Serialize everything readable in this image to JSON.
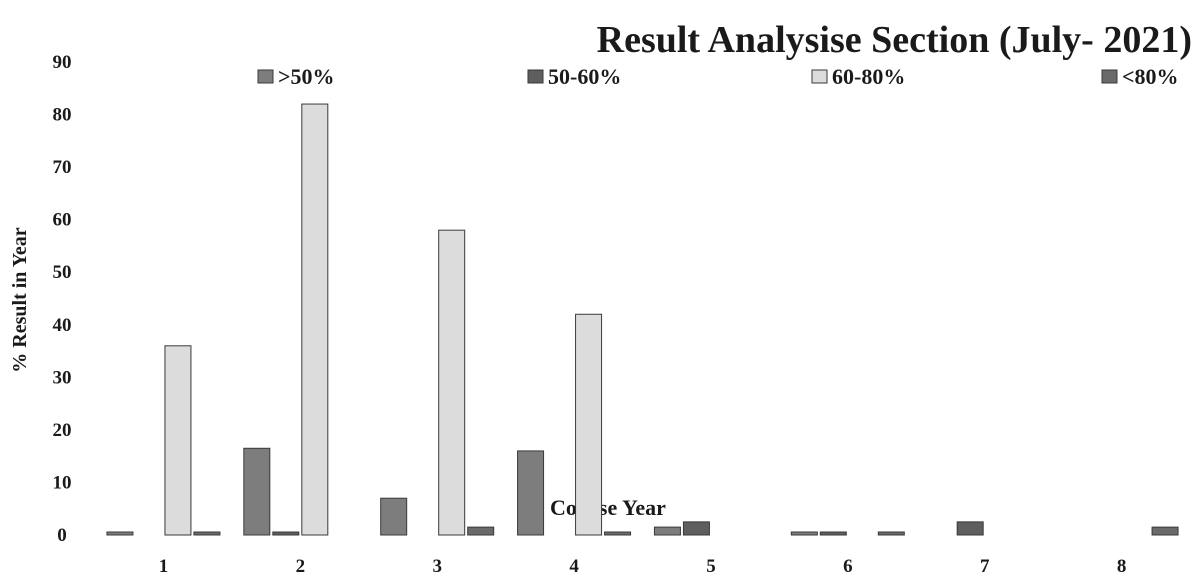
{
  "chart_data": {
    "type": "bar",
    "title": "Result Analysise Section (July- 2021)",
    "xlabel": "Course Year",
    "ylabel": "% Result in Year",
    "ylim": [
      0,
      90
    ],
    "yticks": [
      "0",
      "10",
      "20",
      "30",
      "40",
      "50",
      "60",
      "70",
      "80",
      "90"
    ],
    "categories": [
      "1",
      "2",
      "3",
      "4",
      "5",
      "6",
      "7",
      "8"
    ],
    "series": [
      {
        "name": ">50%",
        "color": "#7d7d7d",
        "values": [
          0.5,
          16.5,
          7,
          16,
          1.5,
          0.5,
          0,
          0
        ]
      },
      {
        "name": "50-60%",
        "color": "#5e5e5e",
        "values": [
          0,
          0.5,
          0,
          0,
          2.5,
          0.5,
          2.5,
          0
        ]
      },
      {
        "name": "60-80%",
        "color": "#dcdcdc",
        "values": [
          36,
          82,
          58,
          42,
          0,
          0,
          0,
          0
        ]
      },
      {
        "name": "<80%",
        "color": "#6a6a6a",
        "values": [
          0.5,
          0,
          1.5,
          0.5,
          0,
          0.5,
          0,
          1.5
        ]
      }
    ],
    "legend_position": "top",
    "grid": false
  }
}
